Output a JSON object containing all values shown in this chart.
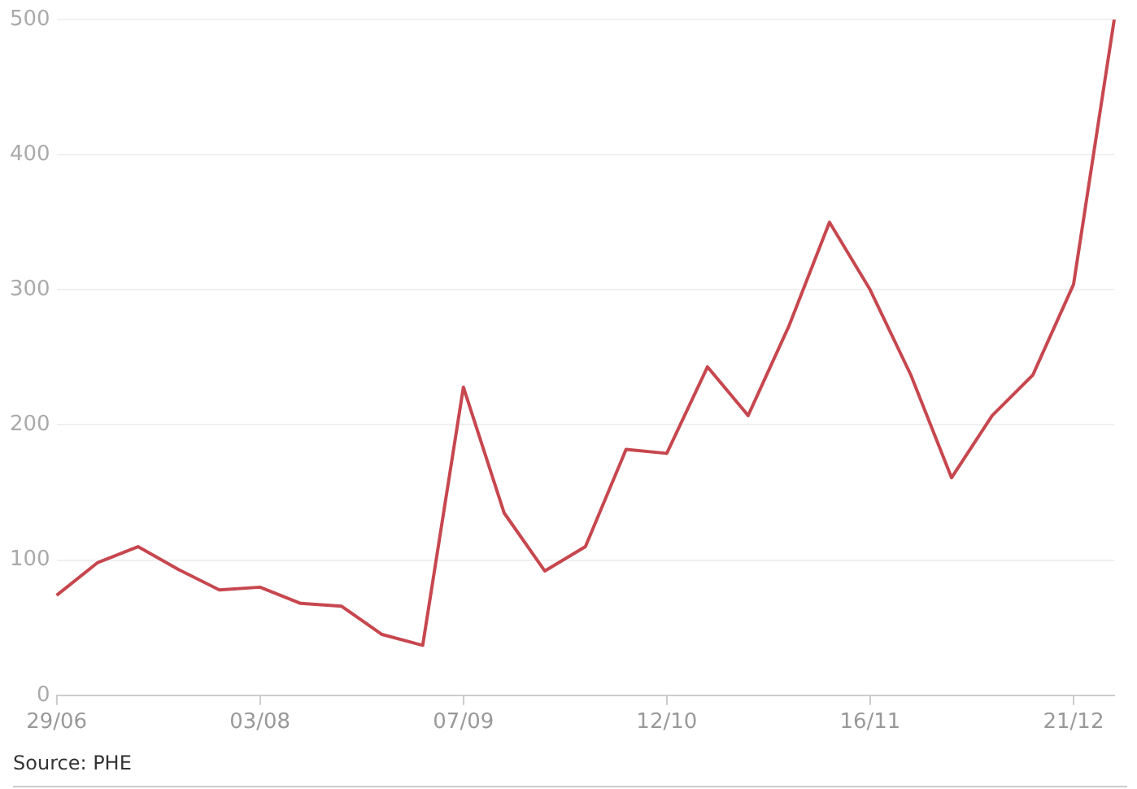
{
  "chart_data": {
    "type": "line",
    "categories": [
      "29/06",
      null,
      null,
      null,
      null,
      "03/08",
      null,
      null,
      null,
      null,
      "07/09",
      null,
      null,
      null,
      null,
      "12/10",
      null,
      null,
      null,
      null,
      "16/11",
      null,
      null,
      null,
      null,
      "21/12",
      null
    ],
    "series": [
      {
        "color": "#c7474f",
        "values": [
          74,
          98,
          110,
          93,
          78,
          80,
          68,
          66,
          45,
          37,
          228,
          135,
          92,
          110,
          182,
          179,
          243,
          207,
          273,
          350,
          300,
          237,
          161,
          207,
          237,
          304,
          500
        ]
      }
    ],
    "ylim": [
      0,
      500
    ],
    "yticks": [
      0,
      100,
      200,
      300,
      400,
      500
    ],
    "grid": "y",
    "marker": "none",
    "legend": false,
    "annotations": [
      "Source: PHE"
    ]
  }
}
